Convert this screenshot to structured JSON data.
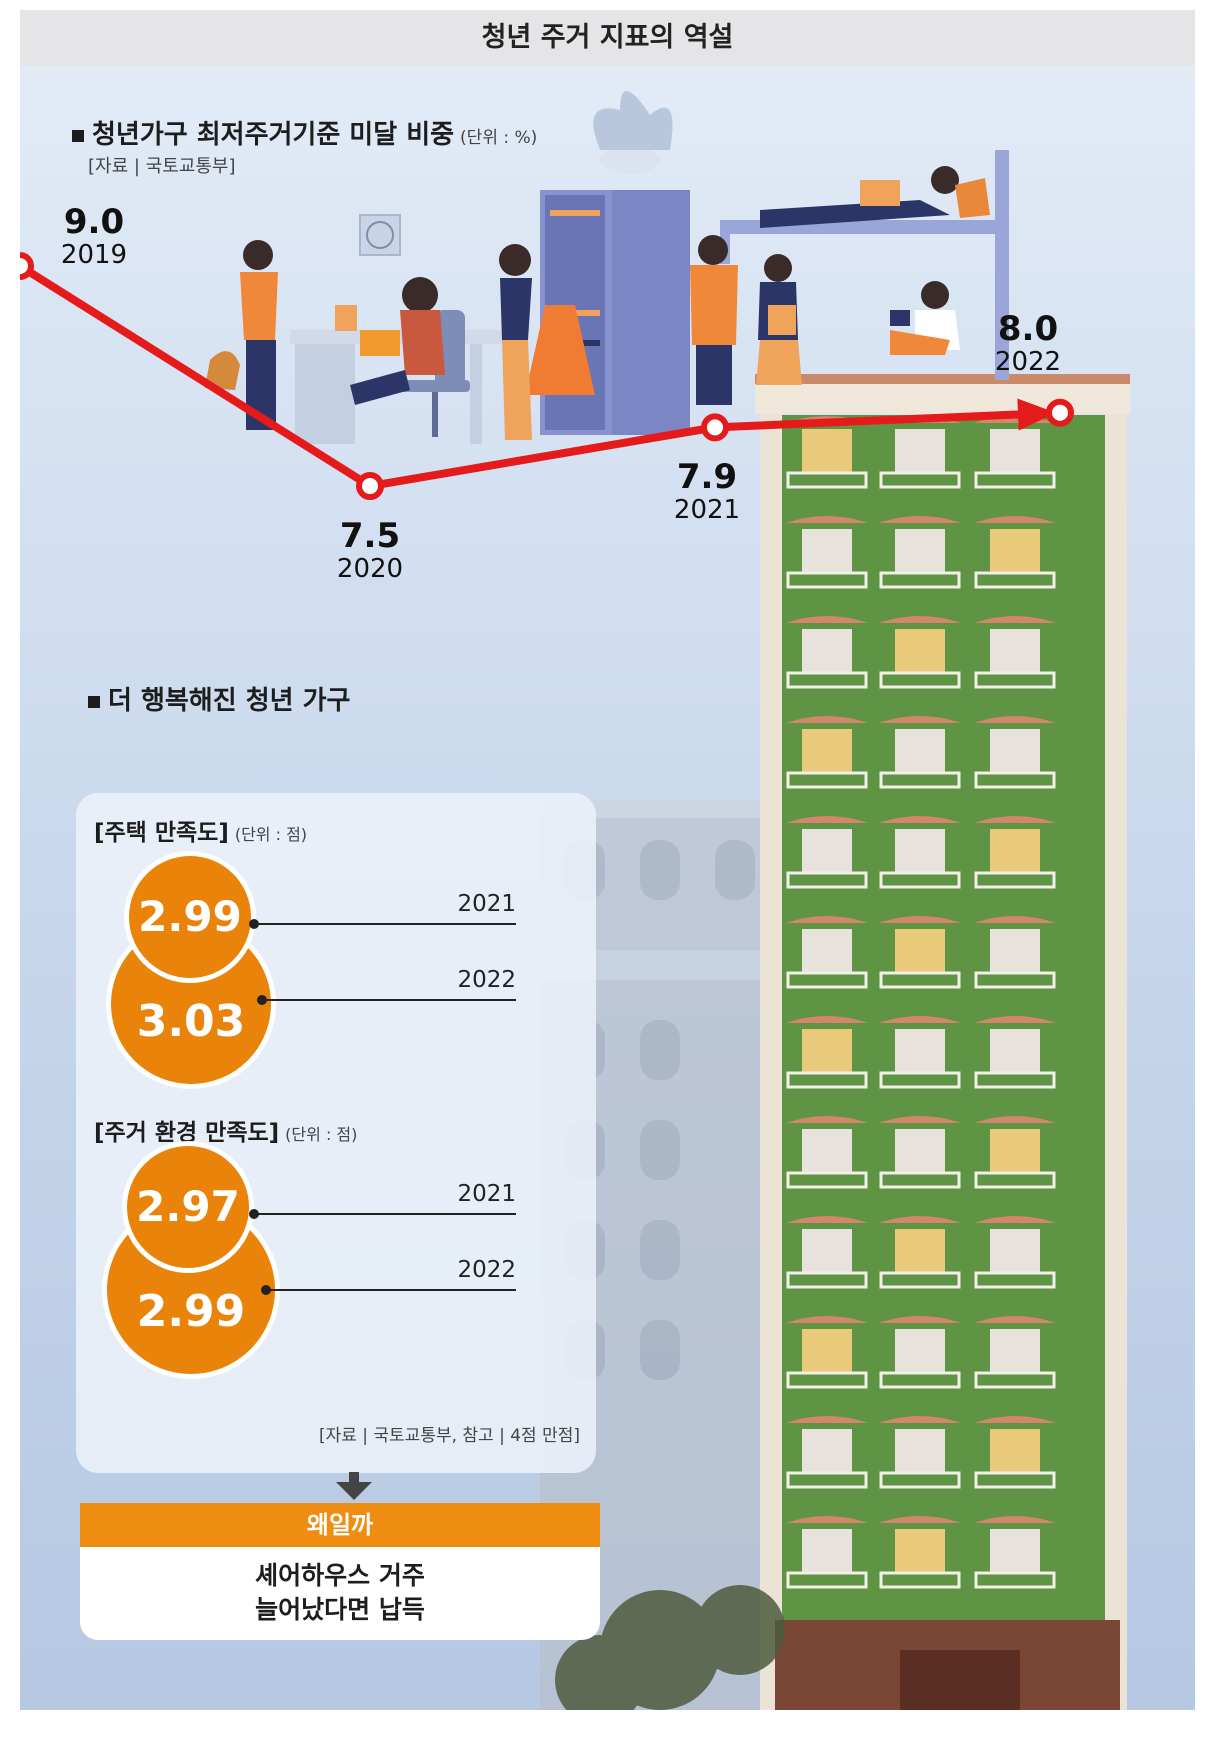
{
  "title": "청년 주거 지표의 역설",
  "line_section": {
    "heading": "청년가구 최저주거기준 미달 비중",
    "unit": "(단위 : %)",
    "source": "[자료 | 국토교통부]"
  },
  "happy_section": {
    "heading": "더 행복해진 청년 가구",
    "housing": {
      "heading": "[주택 만족도]",
      "unit": "(단위 : 점)",
      "v2021": "2.99",
      "y2021": "2021",
      "v2022": "3.03",
      "y2022": "2022"
    },
    "environment": {
      "heading": "[주거 환경 만족도]",
      "unit": "(단위 : 점)",
      "v2021": "2.97",
      "y2021": "2021",
      "v2022": "2.99",
      "y2022": "2022"
    },
    "source": "[자료 | 국토교통부, 참고 | 4점 만점]"
  },
  "why": {
    "label": "왜일까",
    "line1": "셰어하우스 거주",
    "line2": "늘어났다면 납득"
  },
  "colors": {
    "line": "#e51b1b",
    "circle": "#ea8309",
    "why_bar": "#ee8d12",
    "building": "#5e9443"
  },
  "chart_data": [
    {
      "type": "line",
      "title": "청년가구 최저주거기준 미달 비중",
      "unit": "%",
      "x": [
        "2019",
        "2020",
        "2021",
        "2022"
      ],
      "values": [
        9.0,
        7.5,
        7.9,
        8.0
      ],
      "labels": [
        "9.0",
        "7.5",
        "7.9",
        "8.0"
      ],
      "final_arrow": true
    },
    {
      "type": "bubble",
      "title": "주택 만족도",
      "unit": "점",
      "x": [
        "2021",
        "2022"
      ],
      "values": [
        2.99,
        3.03
      ]
    },
    {
      "type": "bubble",
      "title": "주거 환경 만족도",
      "unit": "점",
      "x": [
        "2021",
        "2022"
      ],
      "values": [
        2.97,
        2.99
      ]
    }
  ]
}
